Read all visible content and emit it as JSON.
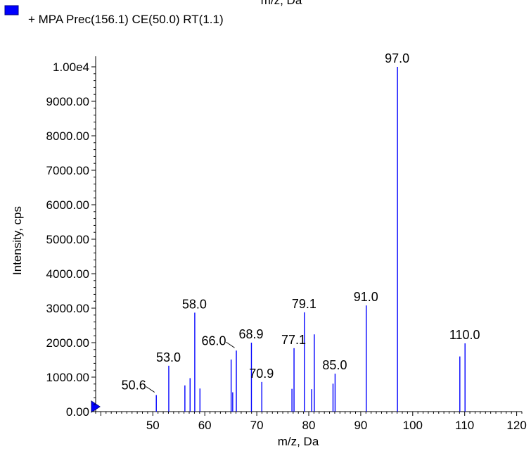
{
  "chart_data": {
    "type": "bar",
    "top_cut_label": "m/z, Da",
    "legend": {
      "label": "+ MPA Prec(156.1) CE(50.0) RT(1.1)",
      "color": "#0000ff"
    },
    "xlabel": "m/z, Da",
    "ylabel": "Intensity, cps",
    "xlim": [
      39,
      121
    ],
    "ylim": [
      0,
      10000
    ],
    "x_ticks": [
      50,
      60,
      70,
      80,
      90,
      100,
      110,
      120
    ],
    "y_ticks": [
      {
        "value": 0,
        "label": "0.00"
      },
      {
        "value": 1000,
        "label": "1000.00"
      },
      {
        "value": 2000,
        "label": "2000.00"
      },
      {
        "value": 3000,
        "label": "3000.00"
      },
      {
        "value": 4000,
        "label": "4000.00"
      },
      {
        "value": 5000,
        "label": "5000.00"
      },
      {
        "value": 6000,
        "label": "6000.00"
      },
      {
        "value": 7000,
        "label": "7000.00"
      },
      {
        "value": 8000,
        "label": "8000.00"
      },
      {
        "value": 9000,
        "label": "9000.00"
      },
      {
        "value": 10000,
        "label": "1.00e4"
      }
    ],
    "bar_color": "#0000ff",
    "peaks": [
      {
        "x": 50.6,
        "y": 480
      },
      {
        "x": 53.0,
        "y": 1330
      },
      {
        "x": 56.1,
        "y": 760
      },
      {
        "x": 57.1,
        "y": 970
      },
      {
        "x": 58.0,
        "y": 2870
      },
      {
        "x": 59.0,
        "y": 670
      },
      {
        "x": 65.0,
        "y": 1510
      },
      {
        "x": 65.3,
        "y": 560
      },
      {
        "x": 66.0,
        "y": 1770
      },
      {
        "x": 68.9,
        "y": 2000
      },
      {
        "x": 70.9,
        "y": 860
      },
      {
        "x": 76.7,
        "y": 660
      },
      {
        "x": 77.1,
        "y": 1840
      },
      {
        "x": 79.1,
        "y": 2880
      },
      {
        "x": 80.5,
        "y": 650
      },
      {
        "x": 81.0,
        "y": 2240
      },
      {
        "x": 84.6,
        "y": 810
      },
      {
        "x": 85.0,
        "y": 1100
      },
      {
        "x": 91.0,
        "y": 3080
      },
      {
        "x": 97.0,
        "y": 10000
      },
      {
        "x": 109.0,
        "y": 1600
      },
      {
        "x": 110.0,
        "y": 1980
      }
    ],
    "peak_labels": [
      {
        "text": "50.6",
        "x": 50.6,
        "y": 480,
        "leader": true
      },
      {
        "text": "53.0",
        "x": 53.0,
        "y": 1330
      },
      {
        "text": "58.0",
        "x": 58.0,
        "y": 2870
      },
      {
        "text": "66.0",
        "x": 66.0,
        "y": 1770,
        "leader": true
      },
      {
        "text": "68.9",
        "x": 68.9,
        "y": 2000
      },
      {
        "text": "70.9",
        "x": 70.9,
        "y": 860
      },
      {
        "text": "77.1",
        "x": 77.1,
        "y": 1840
      },
      {
        "text": "79.1",
        "x": 79.1,
        "y": 2880
      },
      {
        "text": "85.0",
        "x": 85.0,
        "y": 1100
      },
      {
        "text": "91.0",
        "x": 91.0,
        "y": 3080
      },
      {
        "text": "97.0",
        "x": 97.0,
        "y": 10000
      },
      {
        "text": "110.0",
        "x": 110.0,
        "y": 1980
      }
    ]
  }
}
